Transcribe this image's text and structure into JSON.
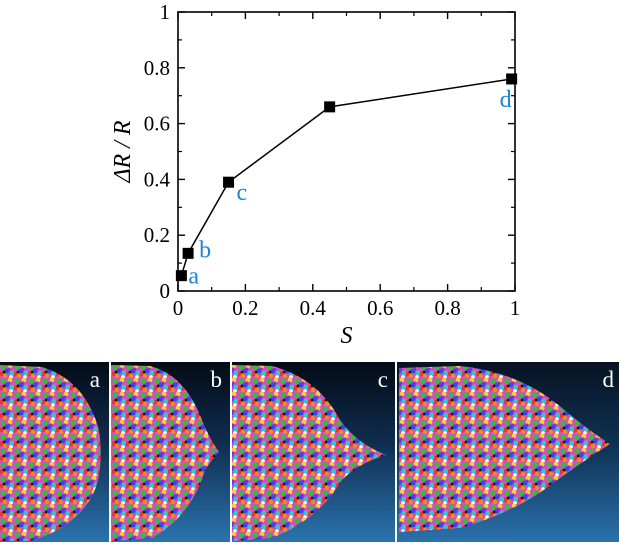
{
  "chart_data": {
    "type": "line",
    "xlabel": "S",
    "ylabel": "ΔR / R",
    "xlim": [
      0,
      1
    ],
    "ylim": [
      0,
      1
    ],
    "grid": false,
    "x_ticks": [
      "0",
      "0.2",
      "0.4",
      "0.6",
      "0.8",
      "1"
    ],
    "y_ticks": [
      "0",
      "0.2",
      "0.4",
      "0.6",
      "0.8",
      "1"
    ],
    "series": [
      {
        "name": "ΔR/R vs S",
        "x": [
          0.01,
          0.03,
          0.15,
          0.45,
          0.99
        ],
        "y": [
          0.055,
          0.135,
          0.39,
          0.66,
          0.76
        ]
      }
    ],
    "point_labels": [
      "a",
      "b",
      "c",
      "d"
    ],
    "point_label_for_index": [
      0,
      1,
      2,
      4
    ],
    "label_color": "#1a85d6"
  },
  "panels": [
    {
      "letter": "a"
    },
    {
      "letter": "b"
    },
    {
      "letter": "c"
    },
    {
      "letter": "d"
    }
  ]
}
